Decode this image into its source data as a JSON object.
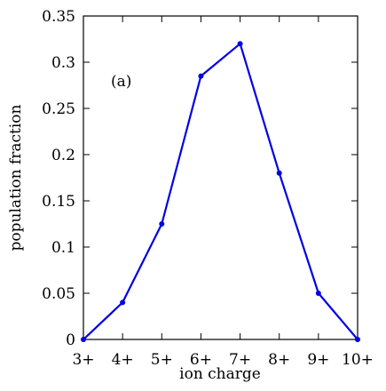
{
  "chart_data": {
    "type": "line",
    "title": "",
    "xlabel": "ion charge",
    "ylabel": "population fraction",
    "annotation": "(a)",
    "categories": [
      "3+",
      "4+",
      "5+",
      "6+",
      "7+",
      "8+",
      "9+",
      "10+"
    ],
    "series": [
      {
        "values": [
          0.0,
          0.04,
          0.125,
          0.285,
          0.32,
          0.18,
          0.05,
          0.0
        ],
        "color": "#0000e6"
      }
    ],
    "ylim": [
      0,
      0.35
    ],
    "yticks": [
      0,
      0.05,
      0.1,
      0.15,
      0.2,
      0.25,
      0.3,
      0.35
    ],
    "ytick_labels": [
      "0",
      "0.05",
      "0.1",
      "0.15",
      "0.2",
      "0.25",
      "0.3",
      "0.35"
    ],
    "grid": false,
    "legend": "none"
  }
}
